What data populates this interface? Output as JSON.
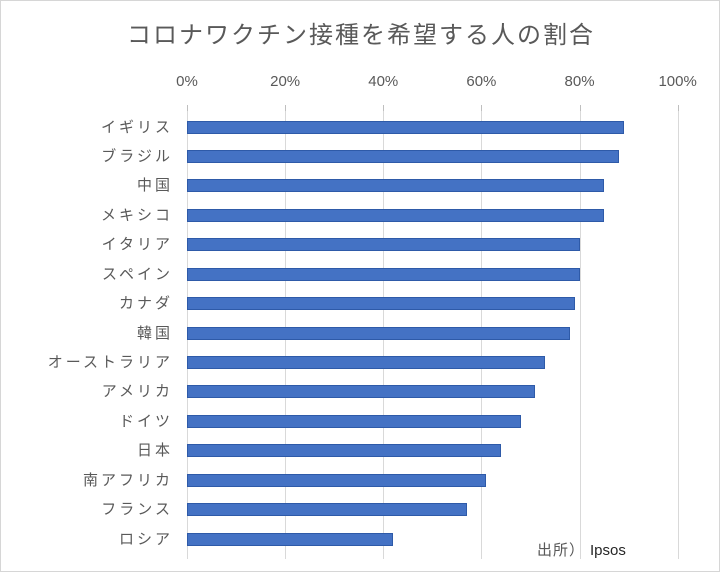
{
  "title": "コロナワクチン接種を希望する人の割合",
  "source": {
    "prefix": "出所）",
    "name": "Ipsos"
  },
  "colors": {
    "bar": "#4472C4",
    "bar_border": "#2E5AA8",
    "gridline": "#D9D9D9",
    "tick": "#BFBFBF",
    "text": "#595959",
    "source_name": "#262626"
  },
  "chart_data": {
    "type": "bar",
    "orientation": "horizontal",
    "title": "コロナワクチン接種を希望する人の割合",
    "categories": [
      "イギリス",
      "ブラジル",
      "中国",
      "メキシコ",
      "イタリア",
      "スペイン",
      "カナダ",
      "韓国",
      "オーストラリア",
      "アメリカ",
      "ドイツ",
      "日本",
      "南アフリカ",
      "フランス",
      "ロシア"
    ],
    "values": [
      89,
      88,
      85,
      85,
      80,
      80,
      79,
      78,
      73,
      71,
      68,
      64,
      61,
      57,
      42
    ],
    "unit": "%",
    "xlabel": "",
    "ylabel": "",
    "x_ticks": [
      "0%",
      "20%",
      "40%",
      "60%",
      "80%",
      "100%"
    ],
    "x_tick_values": [
      0,
      20,
      40,
      60,
      80,
      100
    ],
    "xlim": [
      0,
      100
    ],
    "grid": true,
    "axis_position": "top",
    "legend": false,
    "source": "出所）Ipsos"
  }
}
